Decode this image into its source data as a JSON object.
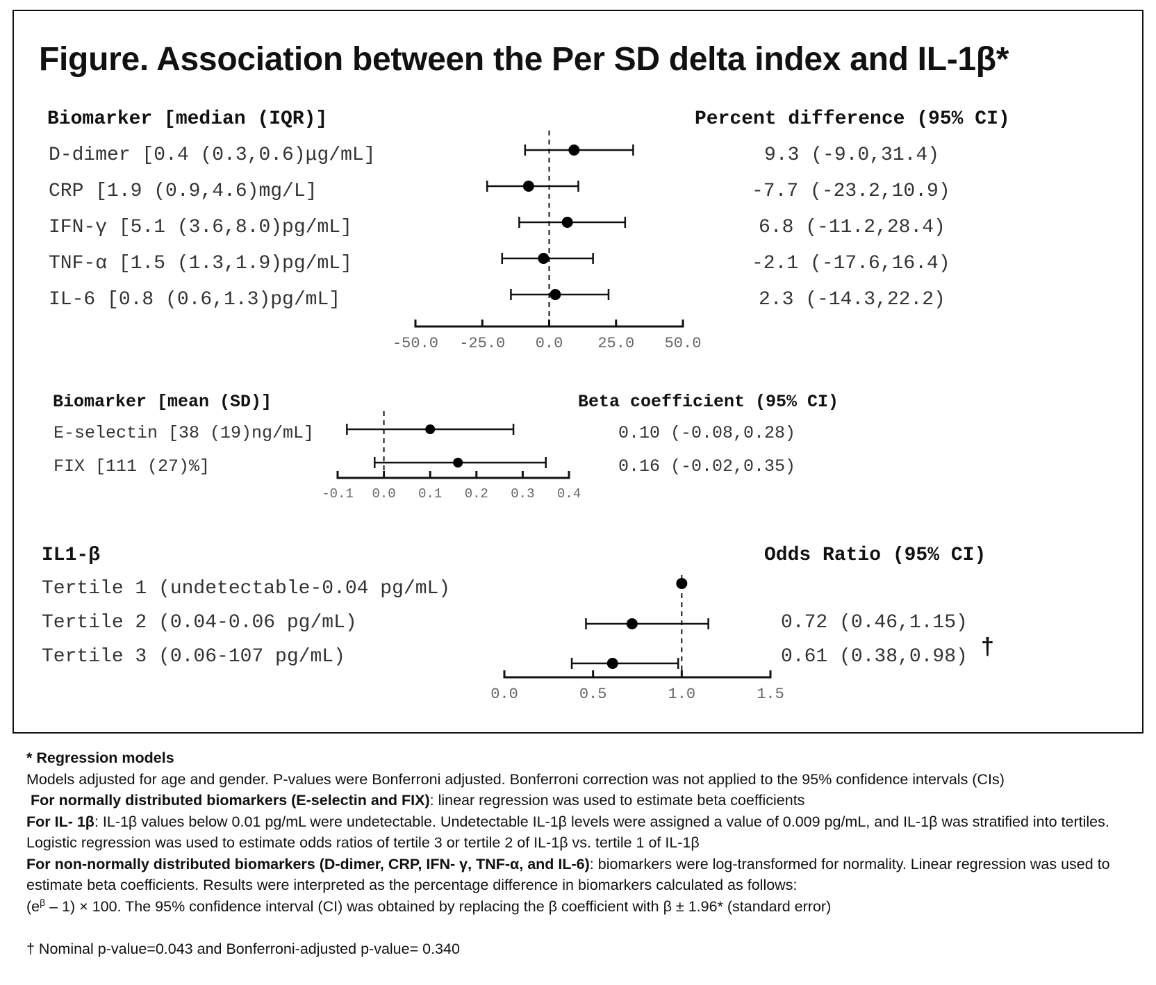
{
  "title": "Figure. Association between the Per SD delta index and IL-1β*",
  "sections": {
    "nonnormal": {
      "header_left": "Biomarker [median (IQR)]",
      "header_right": "Percent difference (95% CI)",
      "rows": [
        {
          "label": "D-dimer [0.4 (0.3,0.6)μg/mL]",
          "ci_text": "9.3 (-9.0,31.4)"
        },
        {
          "label": "CRP [1.9 (0.9,4.6)mg/L]",
          "ci_text": "-7.7 (-23.2,10.9)"
        },
        {
          "label": "IFN-γ [5.1 (3.6,8.0)pg/mL]",
          "ci_text": "6.8 (-11.2,28.4)"
        },
        {
          "label": "TNF-α [1.5 (1.3,1.9)pg/mL]",
          "ci_text": "-2.1 (-17.6,16.4)"
        },
        {
          "label": "IL-6 [0.8 (0.6,1.3)pg/mL]",
          "ci_text": "2.3 (-14.3,22.2)"
        }
      ]
    },
    "normal": {
      "header_left": "Biomarker [mean (SD)]",
      "header_right": "Beta coefficient (95% CI)",
      "rows": [
        {
          "label": "E-selectin [38 (19)ng/mL]",
          "ci_text": "0.10 (-0.08,0.28)"
        },
        {
          "label": "FIX [111 (27)%]",
          "ci_text": "0.16 (-0.02,0.35)"
        }
      ]
    },
    "il1b": {
      "header_left": "IL1-β",
      "header_right": "Odds Ratio (95% CI)",
      "rows": [
        {
          "label": "Tertile 1 (undetectable-0.04 pg/mL)",
          "ci_text": ""
        },
        {
          "label": "Tertile 2 (0.04-0.06 pg/mL)",
          "ci_text": "0.72 (0.46,1.15)"
        },
        {
          "label": "Tertile 3 (0.06-107 pg/mL)",
          "ci_text": "0.61 (0.38,0.98)"
        }
      ],
      "dagger": "†"
    }
  },
  "chart_data": [
    {
      "type": "forest",
      "title": "Percent difference (95% CI)",
      "categories": [
        "D-dimer",
        "CRP",
        "IFN-γ",
        "TNF-α",
        "IL-6"
      ],
      "estimates": [
        9.3,
        -7.7,
        6.8,
        -2.1,
        2.3
      ],
      "lower": [
        -9.0,
        -23.2,
        -11.2,
        -17.6,
        -14.3
      ],
      "upper": [
        31.4,
        10.9,
        28.4,
        16.4,
        22.2
      ],
      "reference": 0,
      "xlim": [
        -50,
        50
      ],
      "xticks": [
        "-50.0",
        "-25.0",
        "0.0",
        "25.0",
        "50.0"
      ]
    },
    {
      "type": "forest",
      "title": "Beta coefficient (95% CI)",
      "categories": [
        "E-selectin",
        "FIX"
      ],
      "estimates": [
        0.1,
        0.16
      ],
      "lower": [
        -0.08,
        -0.02
      ],
      "upper": [
        0.28,
        0.35
      ],
      "reference": 0,
      "xlim": [
        -0.1,
        0.4
      ],
      "xticks": [
        "-0.1",
        "0.0",
        "0.1",
        "0.2",
        "0.3",
        "0.4"
      ]
    },
    {
      "type": "forest",
      "title": "Odds Ratio (95% CI)",
      "categories": [
        "Tertile 1",
        "Tertile 2",
        "Tertile 3"
      ],
      "estimates": [
        1.0,
        0.72,
        0.61
      ],
      "lower": [
        null,
        0.46,
        0.38
      ],
      "upper": [
        null,
        1.15,
        0.98
      ],
      "reference": 1,
      "xlim": [
        0,
        1.5
      ],
      "xticks": [
        "0.0",
        "0.5",
        "1.0",
        "1.5"
      ]
    }
  ],
  "footnotes": {
    "heading": "* Regression models",
    "line1": "Models adjusted for age and gender. P-values were Bonferroni adjusted. Bonferroni correction was not applied to the 95% confidence intervals (CIs)",
    "normal_bold": "For normally distributed biomarkers (E-selectin and FIX)",
    "normal_text": ": linear regression was used to estimate beta coefficients",
    "il1b_bold": "For IL- 1β",
    "il1b_text": ": IL-1β values below 0.01 pg/mL were undetectable. Undetectable IL-1β levels were assigned a value of 0.009 pg/mL, and IL-1β was stratified into tertiles. Logistic regression was used to estimate odds ratios of tertile 3 or tertile 2 of IL-1β vs. tertile 1 of IL-1β",
    "nonnormal_bold": "For non-normally distributed biomarkers (D-dimer, CRP, IFN- γ, TNF-α, and IL-6)",
    "nonnormal_text": ": biomarkers were log-transformed for normality. Linear regression was used to estimate beta coefficients. Results were interpreted as the percentage difference in biomarkers calculated as follows:",
    "formula_open": "(e",
    "formula_sup": "β",
    "formula_rest": " – 1) × 100. The 95% confidence interval (CI) was obtained by replacing the β coefficient with β ± 1.96* (standard error)",
    "dagger_note": "† Nominal p-value=0.043 and Bonferroni-adjusted p-value= 0.340"
  }
}
